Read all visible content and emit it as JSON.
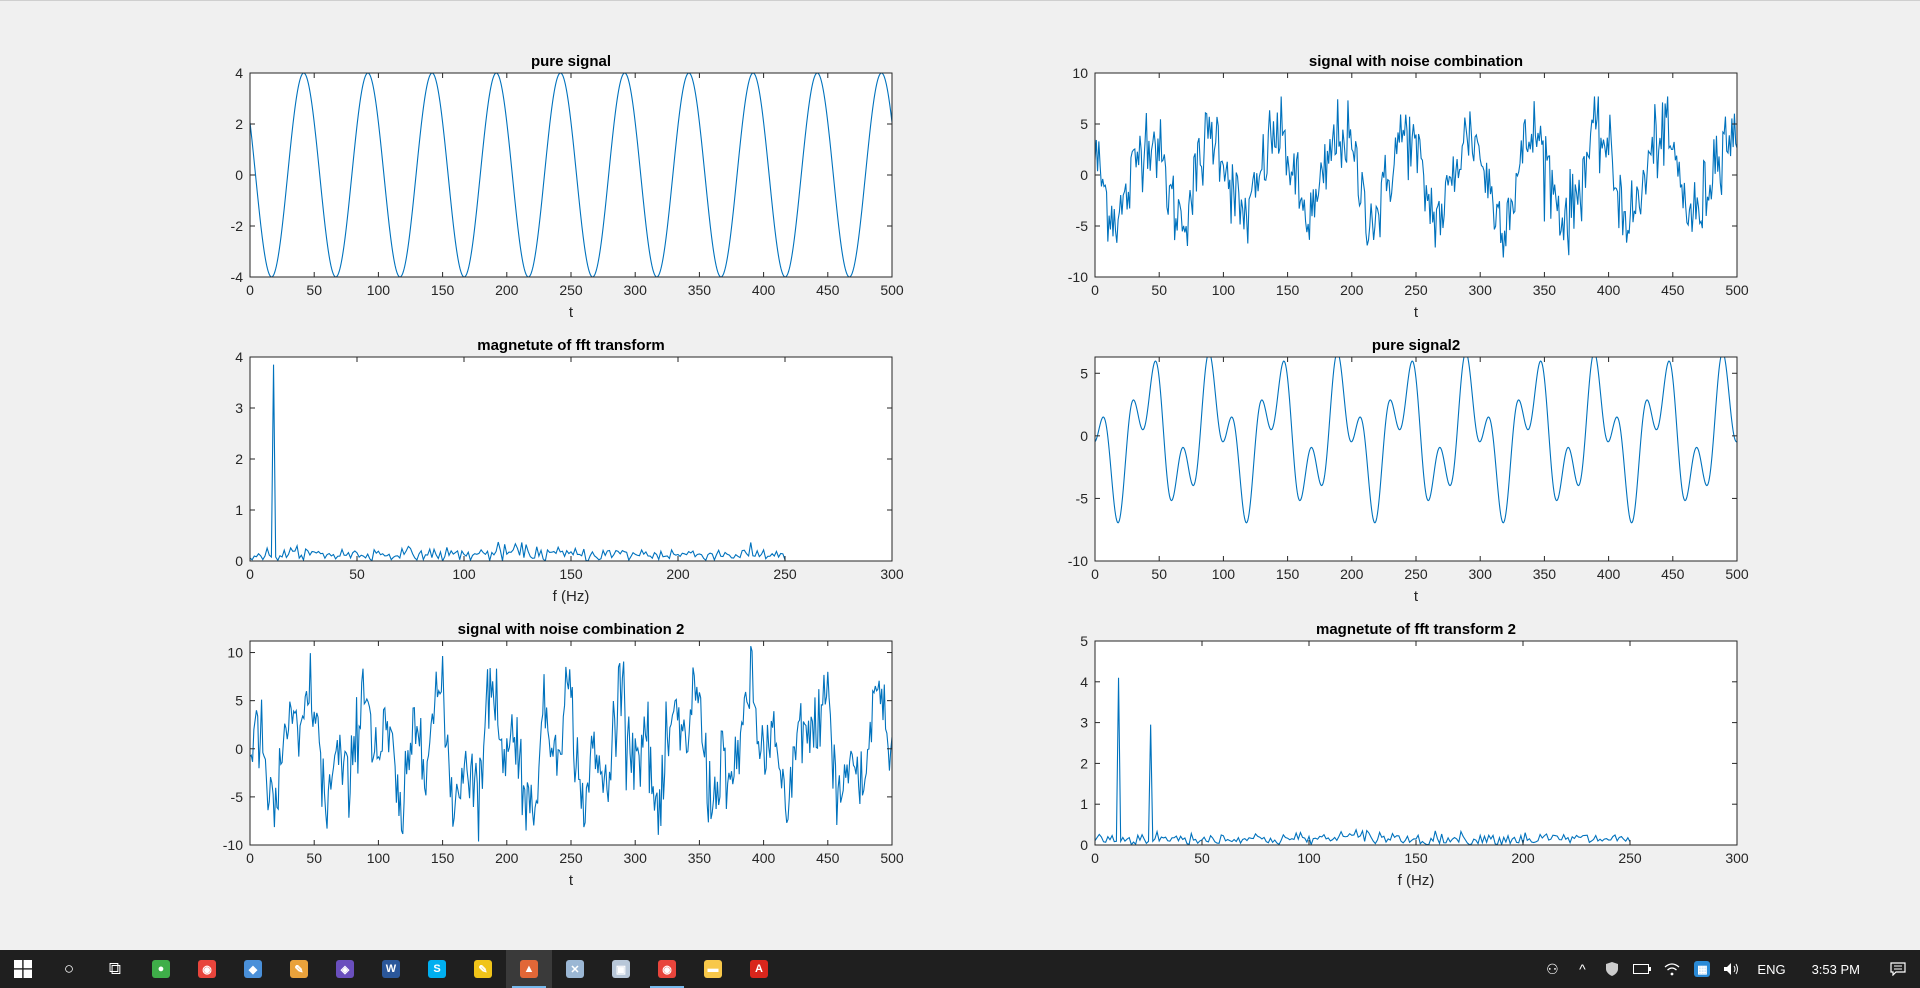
{
  "chart_data": [
    {
      "type": "line",
      "title": "pure signal",
      "xlabel": "t",
      "ylabel": "",
      "xlim": [
        0,
        500
      ],
      "ylim": [
        -4,
        4
      ],
      "xticks": [
        0,
        50,
        100,
        150,
        200,
        250,
        300,
        350,
        400,
        450,
        500
      ],
      "yticks": [
        -4,
        -2,
        0,
        2,
        4
      ],
      "grid": false,
      "color": "#0072bd",
      "series": [
        {
          "formula": "4*sin(2*pi*0.02*t + 2.6)",
          "x_range": [
            0,
            500
          ],
          "n": 501
        }
      ]
    },
    {
      "type": "line",
      "title": "signal with noise combination",
      "xlabel": "t",
      "ylabel": "",
      "xlim": [
        0,
        500
      ],
      "ylim": [
        -10,
        10
      ],
      "xticks": [
        0,
        50,
        100,
        150,
        200,
        250,
        300,
        350,
        400,
        450,
        500
      ],
      "yticks": [
        -10,
        -5,
        0,
        5,
        10
      ],
      "grid": false,
      "color": "#0072bd",
      "series": [
        {
          "formula": "4*sin(2*pi*0.02*t + 2.6) + noise(std 1.9)",
          "x_range": [
            0,
            500
          ],
          "n": 501,
          "peak_max": 7.7,
          "peak_min": -7.9
        }
      ]
    },
    {
      "type": "line",
      "title": "magnetute of fft transform",
      "xlabel": "f (Hz)",
      "ylabel": "",
      "xlim": [
        0,
        300
      ],
      "ylim": [
        0,
        4
      ],
      "xticks": [
        0,
        50,
        100,
        150,
        200,
        250,
        300
      ],
      "yticks": [
        0,
        1,
        2,
        3,
        4
      ],
      "grid": false,
      "color": "#0072bd",
      "series": [
        {
          "x_range": [
            0,
            250
          ],
          "n": 251,
          "noise_floor_avg": 0.13,
          "peaks": [
            {
              "f": 11,
              "value": 3.85
            }
          ]
        }
      ]
    },
    {
      "type": "line",
      "title": "pure signal2",
      "xlabel": "t",
      "ylabel": "",
      "xlim": [
        0,
        500
      ],
      "ylim": [
        -10,
        6.3
      ],
      "xticks": [
        0,
        50,
        100,
        150,
        200,
        250,
        300,
        350,
        400,
        450,
        500
      ],
      "yticks": [
        -10,
        -5,
        0,
        5
      ],
      "grid": false,
      "color": "#0072bd",
      "series": [
        {
          "formula": "4*sin(2*pi*0.02*t + 2.6) + 3*sin(2*pi*0.05*t - 1.0)",
          "x_range": [
            0,
            500
          ],
          "n": 501
        }
      ]
    },
    {
      "type": "line",
      "title": "signal with noise combination 2",
      "xlabel": "t",
      "ylabel": "",
      "xlim": [
        0,
        500
      ],
      "ylim": [
        -10,
        11.2
      ],
      "xticks": [
        0,
        50,
        100,
        150,
        200,
        250,
        300,
        350,
        400,
        450,
        500
      ],
      "yticks": [
        -10,
        -5,
        0,
        5,
        10
      ],
      "grid": false,
      "color": "#0072bd",
      "series": [
        {
          "formula": "pure signal2 + noise(std 2.1)",
          "x_range": [
            0,
            500
          ],
          "n": 501,
          "peak_max": 11.2,
          "peak_min": -10
        }
      ]
    },
    {
      "type": "line",
      "title": "magnetute of fft transform 2",
      "xlabel": "f (Hz)",
      "ylabel": "",
      "xlim": [
        0,
        300
      ],
      "ylim": [
        0,
        5
      ],
      "xticks": [
        0,
        50,
        100,
        150,
        200,
        250,
        300
      ],
      "yticks": [
        0,
        1,
        2,
        3,
        4,
        5
      ],
      "grid": false,
      "color": "#0072bd",
      "series": [
        {
          "x_range": [
            0,
            250
          ],
          "n": 251,
          "noise_floor_avg": 0.15,
          "peaks": [
            {
              "f": 11,
              "value": 4.1
            },
            {
              "f": 26,
              "value": 2.95
            }
          ]
        }
      ]
    }
  ],
  "taskbar": {
    "apps": [
      {
        "name": "cortana-search-icon",
        "glyph": "○",
        "active": false
      },
      {
        "name": "task-view-icon",
        "glyph": "⧉",
        "active": false
      },
      {
        "name": "app-green-icon",
        "glyph": "●",
        "color": "#3fae49",
        "active": false
      },
      {
        "name": "chrome-icon",
        "glyph": "◉",
        "color": "#e8453c",
        "active": false
      },
      {
        "name": "app-blue-icon",
        "glyph": "◆",
        "color": "#4a90d9",
        "active": false
      },
      {
        "name": "paint-icon",
        "glyph": "✎",
        "color": "#e9a23b",
        "active": false
      },
      {
        "name": "app-purple-icon",
        "glyph": "◈",
        "color": "#6a4fbd",
        "active": false
      },
      {
        "name": "word-icon",
        "glyph": "W",
        "color": "#2b579a",
        "active": false
      },
      {
        "name": "skype-icon",
        "glyph": "S",
        "color": "#00aff0",
        "active": false
      },
      {
        "name": "app-yellow-icon",
        "glyph": "✎",
        "color": "#f0c419",
        "active": false
      },
      {
        "name": "matlab-icon",
        "glyph": "▲",
        "color": "#e16737",
        "active": true
      },
      {
        "name": "app-tool-icon",
        "glyph": "✕",
        "color": "#9bb7d4",
        "active": false
      },
      {
        "name": "app-gallery-icon",
        "glyph": "▣",
        "color": "#b8c7d8",
        "active": false
      },
      {
        "name": "chrome2-icon",
        "glyph": "◉",
        "color": "#e8453c",
        "active": false,
        "open": true
      },
      {
        "name": "file-explorer-icon",
        "glyph": "▬",
        "color": "#f8c84a",
        "active": false
      },
      {
        "name": "acrobat-icon",
        "glyph": "A",
        "color": "#d9261c",
        "active": false
      }
    ],
    "tray": {
      "people": "⚇",
      "chevron": "^",
      "language": "ENG",
      "time": "3:53 PM"
    }
  }
}
